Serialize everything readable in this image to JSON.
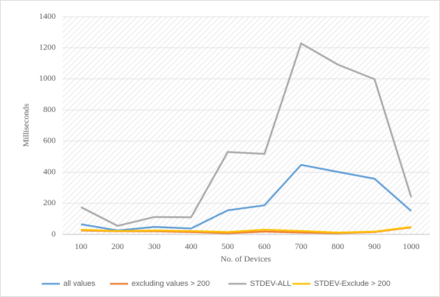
{
  "chart_data": {
    "type": "line",
    "x_label": "No. of Devices",
    "y_label": "Milliseconds",
    "categories": [
      "100",
      "200",
      "300",
      "400",
      "500",
      "600",
      "700",
      "800",
      "900",
      "1000"
    ],
    "series": [
      {
        "name": "all values",
        "color": "#5b9bd5",
        "values": [
          65,
          25,
          48,
          38,
          155,
          187,
          447,
          402,
          358,
          150
        ]
      },
      {
        "name": "excluding values > 200",
        "color": "#ed7d31",
        "values": [
          25,
          20,
          20,
          15,
          8,
          18,
          12,
          8,
          15,
          45
        ]
      },
      {
        "name": "STDEV-ALL",
        "color": "#a5a5a5",
        "values": [
          175,
          55,
          112,
          110,
          530,
          518,
          1228,
          1092,
          998,
          240
        ]
      },
      {
        "name": "STDEV-Exclude > 200",
        "color": "#ffc000",
        "values": [
          30,
          22,
          25,
          22,
          15,
          30,
          22,
          12,
          18,
          48
        ]
      }
    ],
    "ylim": [
      0,
      1400
    ],
    "yticks": [
      0,
      200,
      400,
      600,
      800,
      1000,
      1200,
      1400
    ],
    "grid": true,
    "legend": "bottom"
  }
}
